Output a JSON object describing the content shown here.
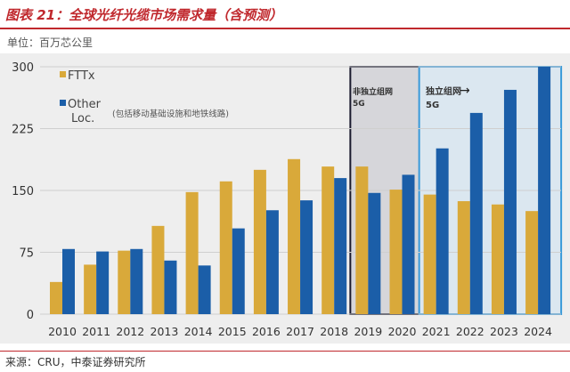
{
  "title": "图表 21：全球光纤光缆市场需求量（含预测）",
  "unit": "单位：百万芯公里",
  "source": "来源：CRU，中泰证券研究所",
  "colors": {
    "fttx": "#d9a93a",
    "other": "#1b5ea8",
    "nsa_box": "#1a1a2e",
    "sa_box": "#3a9ad9"
  },
  "annotations": {
    "other_note": "(包括移动基础设施和地铁线路)",
    "nsa_label1": "非独立组网",
    "nsa_label2": "5G",
    "sa_label1": "独立组网",
    "sa_label2": "5G",
    "arrow": "→"
  },
  "chart_data": {
    "type": "bar",
    "title": "全球光纤光缆市场需求量（含预测）",
    "ylabel": "百万芯公里",
    "ylim": [
      0,
      300
    ],
    "yticks": [
      "0",
      "75",
      "150",
      "225",
      "300"
    ],
    "legend_position": "top-left",
    "categories": [
      "2010",
      "2011",
      "2012",
      "2013",
      "2014",
      "2015",
      "2016",
      "2017",
      "2018",
      "2019",
      "2020",
      "2021",
      "2022",
      "2023",
      "2024"
    ],
    "series": [
      {
        "name": "FTTx",
        "values": [
          39,
          60,
          77,
          107,
          148,
          161,
          175,
          188,
          179,
          179,
          151,
          145,
          137,
          133,
          125
        ]
      },
      {
        "name": "Other Loc.",
        "values": [
          79,
          76,
          79,
          65,
          59,
          104,
          126,
          138,
          165,
          147,
          169,
          201,
          244,
          272,
          300
        ]
      }
    ]
  }
}
